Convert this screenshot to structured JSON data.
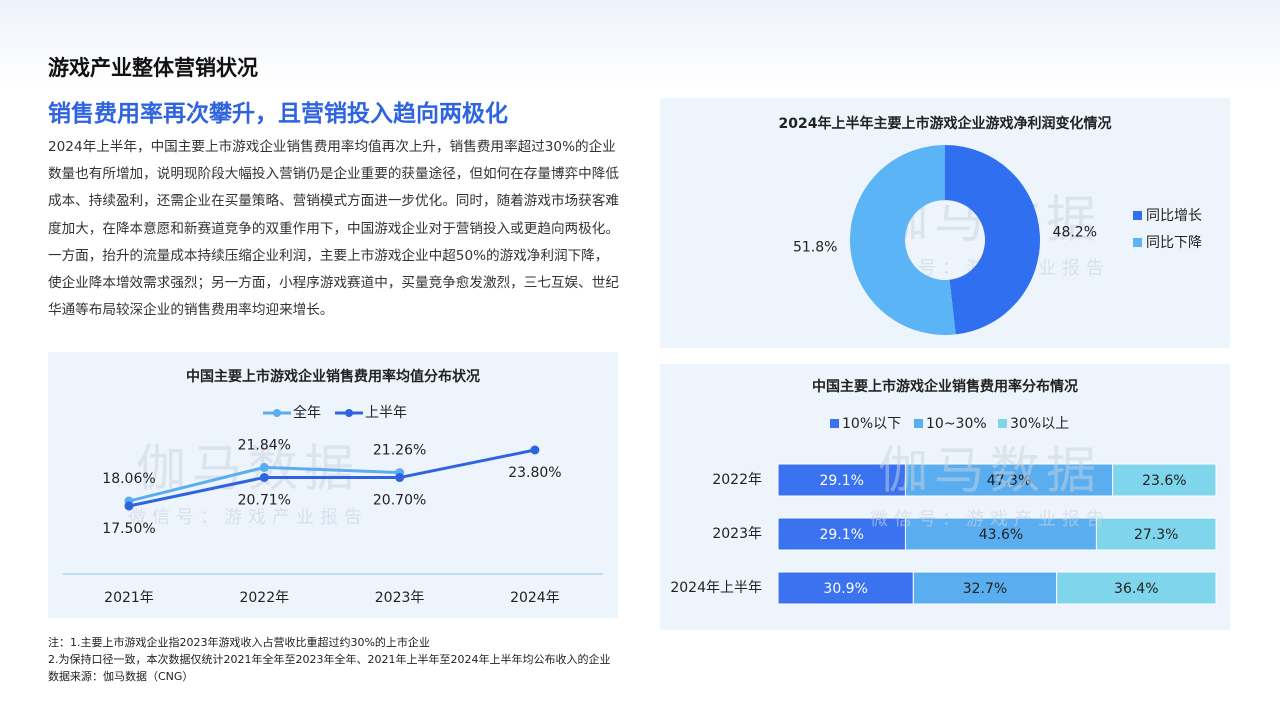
{
  "header": {
    "title": "游戏产业整体营销状况",
    "subtitle": "销售费用率再次攀升，且营销投入趋向两极化"
  },
  "body": "2024年上半年，中国主要上市游戏企业销售费用率均值再次上升，销售费用率超过30%的企业数量也有所增加，说明现阶段大幅投入营销仍是企业重要的获量途径，但如何在存量博弈中降低成本、持续盈利，还需企业在买量策略、营销模式方面进一步优化。同时，随着游戏市场获客难度加大，在降本意愿和新赛道竞争的双重作用下，中国游戏企业对于营销投入或更趋向两极化。一方面，抬升的流量成本持续压缩企业利润，主要上市游戏企业中超50%的游戏净利润下降，使企业降本增效需求强烈；另一方面，小程序游戏赛道中，买量竞争愈发激烈，三七互娱、世纪华通等布局较深企业的销售费用率均迎来增长。",
  "notes": [
    "注：1.主要上市游戏企业指2023年游戏收入占营收比重超过约30%的上市企业",
    "2.为保持口径一致，本次数据仅统计2021年全年至2023年全年、2021年上半年至2024年上半年均公布收入的企业",
    "数据来源：伽马数据（CNG）"
  ],
  "watermark": {
    "brand": "伽马数据",
    "account": "微信号：游戏产业报告"
  },
  "chart_data": [
    {
      "type": "line",
      "title": "中国主要上市游戏企业销售费用率均值分布状况",
      "categories": [
        "2021年",
        "2022年",
        "2023年",
        "2024年"
      ],
      "series": [
        {
          "name": "全年",
          "color": "#5aaef0",
          "values": [
            18.06,
            21.84,
            21.26,
            null
          ],
          "value_labels": [
            "18.06%",
            "21.84%",
            "21.26%",
            null
          ]
        },
        {
          "name": "上半年",
          "color": "#2f64e0",
          "values": [
            17.5,
            20.71,
            20.7,
            23.8
          ],
          "value_labels": [
            "17.50%",
            "20.71%",
            "20.70%",
            "23.80%"
          ]
        }
      ]
    },
    {
      "type": "pie",
      "title": "2024年上半年主要上市游戏企业游戏净利润变化情况",
      "categories": [
        "同比增长",
        "同比下降"
      ],
      "values": [
        48.2,
        51.8
      ],
      "value_labels": [
        "48.2%",
        "51.8%"
      ],
      "colors": [
        "#2f6ff0",
        "#5ab4f5"
      ]
    },
    {
      "type": "stacked-barh",
      "title": "中国主要上市游戏企业销售费用率分布情况",
      "categories": [
        "2022年",
        "2023年",
        "2024年上半年"
      ],
      "series": [
        {
          "name": "10%以下",
          "color": "#3a72f0",
          "values": [
            29.1,
            29.1,
            30.9
          ],
          "value_labels": [
            "29.1%",
            "29.1%",
            "30.9%"
          ]
        },
        {
          "name": "10~30%",
          "color": "#5aaef0",
          "values": [
            47.3,
            43.6,
            32.7
          ],
          "value_labels": [
            "47.3%",
            "43.6%",
            "32.7%"
          ]
        },
        {
          "name": "30%以上",
          "color": "#7fd5ec",
          "values": [
            23.6,
            27.3,
            36.4
          ],
          "value_labels": [
            "23.6%",
            "27.3%",
            "36.4%"
          ]
        }
      ]
    }
  ]
}
